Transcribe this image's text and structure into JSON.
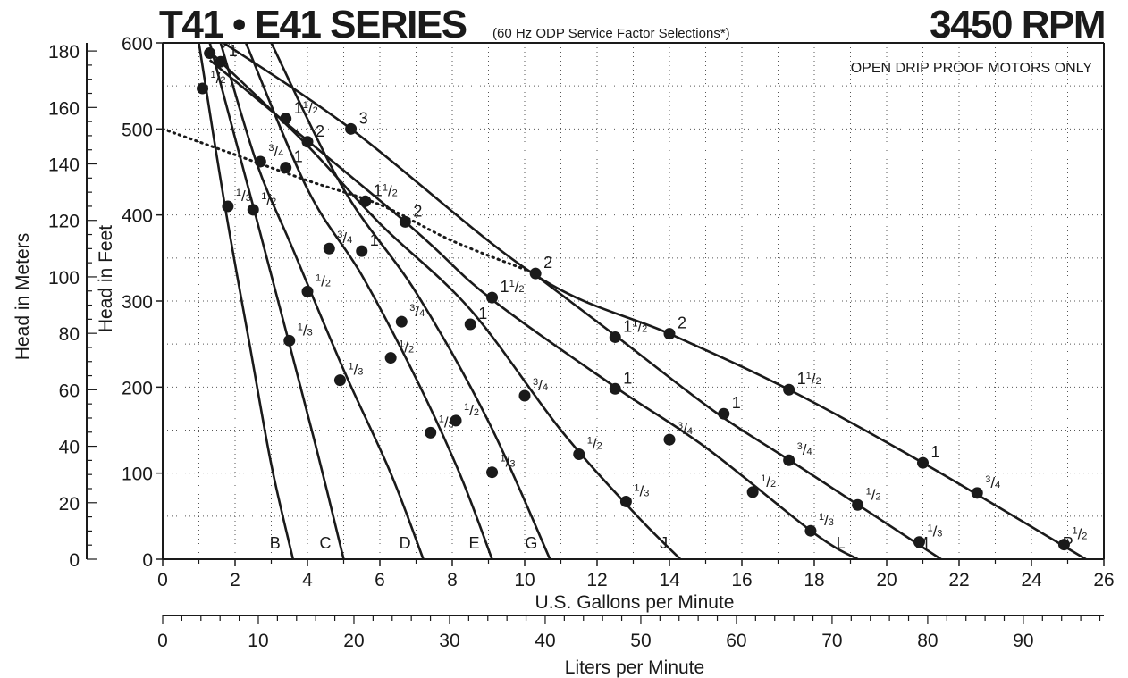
{
  "chart_data": {
    "type": "line",
    "title": "T41 • E41 SERIES",
    "subtitle": "(60 Hz ODP Service Factor Selections*)",
    "speed_label": "3450 RPM",
    "note": "OPEN DRIP PROOF MOTORS ONLY",
    "xlabel": "U.S. Gallons per Minute",
    "x2label": "Liters per Minute",
    "ylabel": "Head in Feet",
    "y2label": "Head in Meters",
    "xlim": [
      0,
      26
    ],
    "ylim": [
      0,
      600
    ],
    "x_ticks": [
      "0",
      "2",
      "4",
      "6",
      "8",
      "10",
      "12",
      "14",
      "16",
      "18",
      "20",
      "22",
      "24",
      "26"
    ],
    "y_ticks": [
      "0",
      "100",
      "200",
      "300",
      "400",
      "500",
      "600"
    ],
    "lpm_ticks": [
      "0",
      "10",
      "20",
      "30",
      "40",
      "50",
      "60",
      "70",
      "80",
      "90"
    ],
    "meter_ticks": [
      "0",
      "20",
      "40",
      "60",
      "80",
      "100",
      "120",
      "140",
      "160",
      "180"
    ],
    "grid": true,
    "series": [
      {
        "name": "B",
        "points": [
          [
            1.0,
            600
          ],
          [
            1.7,
            415
          ],
          [
            2.4,
            250
          ],
          [
            3.0,
            110
          ],
          [
            3.6,
            0
          ]
        ],
        "markers": [
          {
            "x": 1.1,
            "y": 547,
            "label": "1/2"
          },
          {
            "x": 1.8,
            "y": 410,
            "label": "1/3"
          }
        ]
      },
      {
        "name": "C",
        "points": [
          [
            1.3,
            600
          ],
          [
            2.5,
            410
          ],
          [
            3.5,
            250
          ],
          [
            4.3,
            120
          ],
          [
            5.0,
            0
          ]
        ],
        "markers": [
          {
            "x": 1.3,
            "y": 588,
            "label": "3/4"
          },
          {
            "x": 2.5,
            "y": 406,
            "label": "1/2"
          },
          {
            "x": 3.5,
            "y": 254,
            "label": "1/3"
          }
        ]
      },
      {
        "name": "D",
        "points": [
          [
            1.6,
            600
          ],
          [
            2.6,
            460
          ],
          [
            3.6,
            360
          ],
          [
            5.0,
            220
          ],
          [
            6.3,
            100
          ],
          [
            7.2,
            0
          ]
        ],
        "markers": [
          {
            "x": 1.6,
            "y": 578,
            "label": "1"
          },
          {
            "x": 2.7,
            "y": 462,
            "label": "3/4"
          },
          {
            "x": 4.0,
            "y": 311,
            "label": "1/2"
          },
          {
            "x": 4.9,
            "y": 208,
            "label": "1/3"
          }
        ]
      },
      {
        "name": "E",
        "points": [
          [
            2.3,
            600
          ],
          [
            4.0,
            430
          ],
          [
            5.5,
            330
          ],
          [
            7.0,
            210
          ],
          [
            8.2,
            100
          ],
          [
            9.1,
            0
          ]
        ],
        "markers": [
          {
            "x": 3.4,
            "y": 455,
            "label": "1"
          },
          {
            "x": 4.6,
            "y": 361,
            "label": "3/4"
          },
          {
            "x": 6.3,
            "y": 234,
            "label": "1/2"
          },
          {
            "x": 7.4,
            "y": 147,
            "label": "1/3"
          }
        ]
      },
      {
        "name": "G",
        "points": [
          [
            3.0,
            600
          ],
          [
            5.0,
            430
          ],
          [
            7.0,
            310
          ],
          [
            9.0,
            160
          ],
          [
            10.7,
            0
          ]
        ],
        "markers": [
          {
            "x": 3.4,
            "y": 512,
            "label": "1 1/2"
          },
          {
            "x": 5.5,
            "y": 358,
            "label": "1"
          },
          {
            "x": 6.6,
            "y": 276,
            "label": "3/4"
          },
          {
            "x": 8.1,
            "y": 161,
            "label": "1/2"
          },
          {
            "x": 9.1,
            "y": 101,
            "label": "1/3"
          }
        ]
      },
      {
        "name": "J",
        "points": [
          [
            1.3,
            590
          ],
          [
            3.9,
            485
          ],
          [
            6.0,
            390
          ],
          [
            8.5,
            290
          ],
          [
            11.0,
            150
          ],
          [
            13.0,
            55
          ],
          [
            14.3,
            0
          ]
        ],
        "markers": [
          {
            "x": 4.0,
            "y": 485,
            "label": "2"
          },
          {
            "x": 5.6,
            "y": 416,
            "label": "1 1/2"
          },
          {
            "x": 8.5,
            "y": 273,
            "label": "1"
          },
          {
            "x": 10.0,
            "y": 190,
            "label": "3/4"
          },
          {
            "x": 11.5,
            "y": 122,
            "label": "1/2"
          },
          {
            "x": 12.8,
            "y": 67,
            "label": "1/3"
          }
        ]
      },
      {
        "name": "L",
        "points": [
          [
            1.3,
            580
          ],
          [
            6.7,
            392
          ],
          [
            9.0,
            305
          ],
          [
            12.5,
            200
          ],
          [
            15.0,
            130
          ],
          [
            18.0,
            30
          ],
          [
            19.2,
            0
          ]
        ],
        "markers": [
          {
            "x": 6.7,
            "y": 392,
            "label": "2"
          },
          {
            "x": 9.1,
            "y": 304,
            "label": "1 1/2"
          },
          {
            "x": 12.5,
            "y": 198,
            "label": "1"
          },
          {
            "x": 14.0,
            "y": 139,
            "label": "3/4"
          },
          {
            "x": 16.3,
            "y": 78,
            "label": "1/2"
          },
          {
            "x": 17.9,
            "y": 33,
            "label": "1/3"
          }
        ]
      },
      {
        "name": "M",
        "points": [
          [
            10.3,
            330
          ],
          [
            12.5,
            260
          ],
          [
            15.3,
            170
          ],
          [
            17.5,
            110
          ],
          [
            21.5,
            0
          ]
        ],
        "markers": [
          {
            "x": 12.5,
            "y": 258,
            "label": "1 1/2"
          },
          {
            "x": 15.5,
            "y": 169,
            "label": "1"
          },
          {
            "x": 17.3,
            "y": 115,
            "label": "3/4"
          },
          {
            "x": 19.2,
            "y": 63,
            "label": "1/2"
          },
          {
            "x": 20.9,
            "y": 20,
            "label": "1/3"
          }
        ]
      },
      {
        "name": "P",
        "points": [
          [
            1.5,
            605
          ],
          [
            5.2,
            500
          ],
          [
            10.3,
            330
          ],
          [
            14.0,
            262
          ],
          [
            17.3,
            197
          ],
          [
            21.0,
            112
          ],
          [
            25.5,
            0
          ]
        ],
        "markers": [
          {
            "x": 5.2,
            "y": 500,
            "label": "3"
          },
          {
            "x": 10.3,
            "y": 332,
            "label": "2"
          },
          {
            "x": 14.0,
            "y": 262,
            "label": "2"
          },
          {
            "x": 17.3,
            "y": 197,
            "label": "1 1/2"
          },
          {
            "x": 21.0,
            "y": 112,
            "label": "1"
          },
          {
            "x": 22.5,
            "y": 77,
            "label": "3/4"
          },
          {
            "x": 24.9,
            "y": 17,
            "label": "1/2"
          }
        ]
      }
    ],
    "boundary": {
      "style": "dotted",
      "points": [
        [
          0,
          500
        ],
        [
          2,
          470
        ],
        [
          4,
          440
        ],
        [
          6,
          412
        ],
        [
          8,
          370
        ],
        [
          10.3,
          332
        ]
      ]
    }
  }
}
